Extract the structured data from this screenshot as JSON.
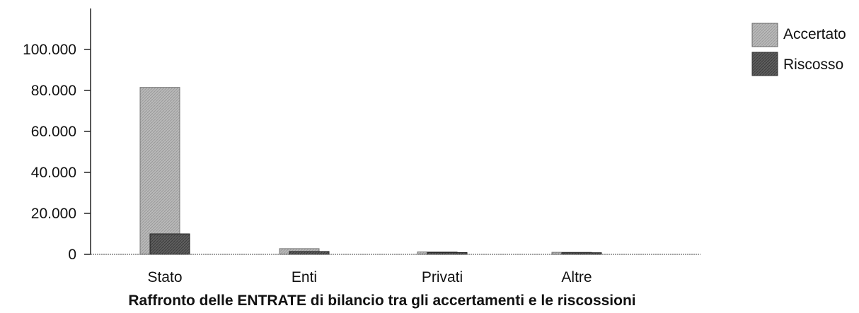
{
  "chart_data": {
    "type": "bar",
    "title": "Raffronto delle ENTRATE di bilancio tra gli accertamenti e le riscossioni",
    "categories": [
      "Stato",
      "Enti",
      "Privati",
      "Altre"
    ],
    "series": [
      {
        "name": "Accertato",
        "values": [
          81500,
          2800,
          1200,
          1000
        ],
        "color": "#b5b5b5"
      },
      {
        "name": "Riscosso",
        "values": [
          10000,
          1400,
          900,
          800
        ],
        "color": "#5a5a5a"
      }
    ],
    "ylim": [
      0,
      100000
    ],
    "yticks": [
      0,
      20000,
      40000,
      60000,
      80000,
      100000
    ],
    "ytick_labels": [
      "0",
      "20.000",
      "40.000",
      "60.000",
      "80.000",
      "100.000"
    ],
    "grid": false,
    "legend": "top-right"
  }
}
